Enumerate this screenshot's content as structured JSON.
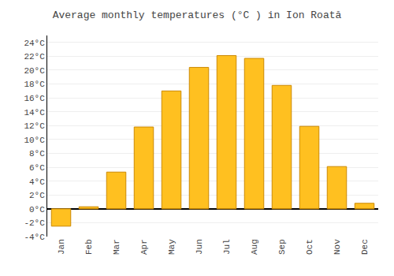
{
  "chart_data": {
    "type": "bar",
    "title": "Average monthly temperatures (°C ) in Ion Roată",
    "categories": [
      "Jan",
      "Feb",
      "Mar",
      "Apr",
      "May",
      "Jun",
      "Jul",
      "Aug",
      "Sep",
      "Oct",
      "Nov",
      "Dec"
    ],
    "values": [
      -2.5,
      0.3,
      5.3,
      11.8,
      17.0,
      20.4,
      22.1,
      21.7,
      17.8,
      11.9,
      6.1,
      0.8
    ],
    "color": "#FFC020",
    "ylim": [
      -4,
      25
    ],
    "yticks": [
      {
        "value": -4,
        "label": "-4°C"
      },
      {
        "value": -2,
        "label": "-2°C"
      },
      {
        "value": 0,
        "label": "0°C"
      },
      {
        "value": 2,
        "label": "2°C"
      },
      {
        "value": 4,
        "label": "4°C"
      },
      {
        "value": 6,
        "label": "6°C"
      },
      {
        "value": 8,
        "label": "8°C"
      },
      {
        "value": 10,
        "label": "10°C"
      },
      {
        "value": 12,
        "label": "12°C"
      },
      {
        "value": 14,
        "label": "14°C"
      },
      {
        "value": 16,
        "label": "16°C"
      },
      {
        "value": 18,
        "label": "18°C"
      },
      {
        "value": 20,
        "label": "20°C"
      },
      {
        "value": 22,
        "label": "22°C"
      },
      {
        "value": 24,
        "label": "24°C"
      }
    ],
    "grid": true
  }
}
